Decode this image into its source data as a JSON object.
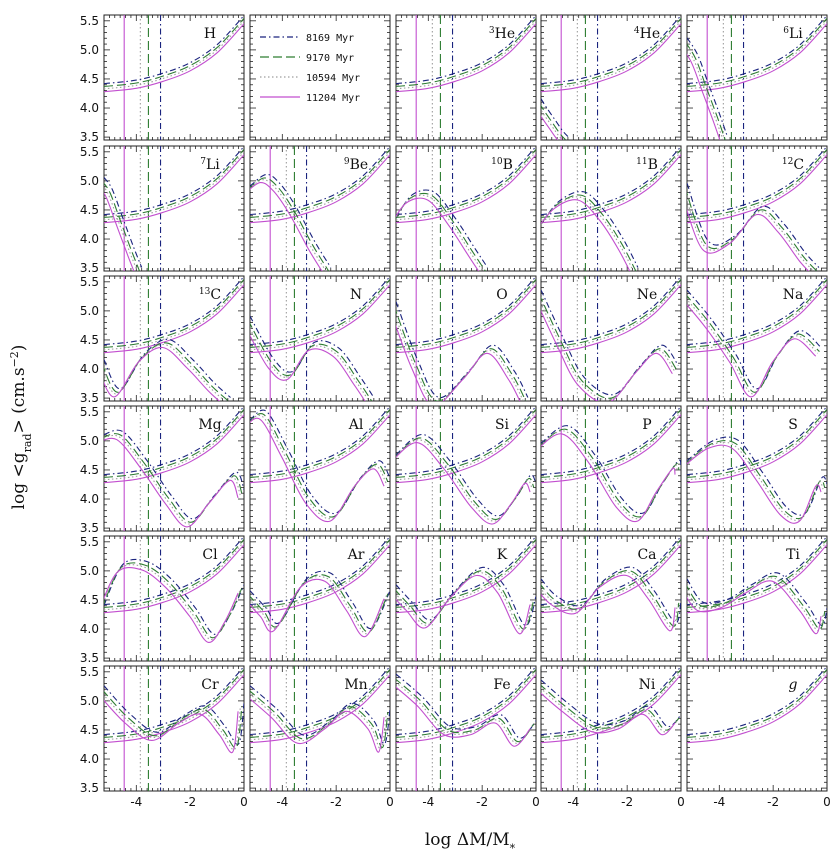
{
  "labels": {
    "ylabel": "log <g_rad> (cm.s^-2)",
    "xlabel": "log ΔM/M*"
  },
  "chart_data": {
    "type": "line",
    "layout": "grid of small-multiple panels, 6 rows x 5 columns; legend in row 1 column 2",
    "xlim": [
      -5.2,
      0
    ],
    "ylim": [
      3.45,
      5.6
    ],
    "xticks": [
      -4,
      -2,
      0
    ],
    "yticks": [
      3.5,
      4.0,
      4.5,
      5.0,
      5.5
    ],
    "ytick_labels": [
      "3.5",
      "4.0",
      "4.5",
      "5.0",
      "5.5"
    ],
    "xtick_labels": [
      "-4",
      "-2",
      "0"
    ],
    "grid": false,
    "series": [
      {
        "name": "8169 Myr",
        "color": "#1a237e",
        "dash": "dash-dot"
      },
      {
        "name": "9170 Myr",
        "color": "#2e7d32",
        "dash": "long dash"
      },
      {
        "name": "10594 Myr",
        "color": "#9e9e9e",
        "dash": "dotted"
      },
      {
        "name": "11204 Myr",
        "color": "#c24fcf",
        "dash": "solid"
      }
    ],
    "vertical_markers": [
      {
        "series": "8169 Myr",
        "x": -3.1
      },
      {
        "series": "9170 Myr",
        "x": -3.55
      },
      {
        "series": "10594 Myr",
        "x": -3.85
      },
      {
        "series": "11204 Myr",
        "x": -4.45
      }
    ],
    "gravity_curve": {
      "x": [
        -5.2,
        -4,
        -3,
        -2,
        -1,
        0
      ],
      "y": [
        4.28,
        4.34,
        4.46,
        4.64,
        4.95,
        5.45
      ]
    },
    "legend_panel": {
      "row": 0,
      "col": 1
    },
    "panels": [
      {
        "label": "H",
        "iso": "",
        "row": 0,
        "col": 0,
        "x": [
          -5.2,
          -4,
          -3,
          -2,
          -1,
          0
        ],
        "y": [
          4.28,
          4.34,
          4.46,
          4.64,
          4.95,
          5.45
        ]
      },
      {
        "label": "He",
        "iso": "3",
        "row": 0,
        "col": 2,
        "x": [
          -5.2,
          -4,
          -3,
          -2,
          -1,
          0
        ],
        "y": [
          4.28,
          4.34,
          4.46,
          4.64,
          4.95,
          5.45
        ]
      },
      {
        "label": "He",
        "iso": "4",
        "row": 0,
        "col": 3,
        "x": [
          -5.2,
          -5,
          -4.7,
          -4.4,
          -4.2
        ],
        "y": [
          4.1,
          3.95,
          3.75,
          3.55,
          3.45
        ]
      },
      {
        "label": "Li",
        "iso": "6",
        "row": 0,
        "col": 4,
        "x": [
          -5.2,
          -4.8,
          -4.4,
          -4,
          -3.7
        ],
        "y": [
          5.15,
          4.85,
          4.35,
          3.85,
          3.45
        ]
      },
      {
        "label": "Li",
        "iso": "7",
        "row": 1,
        "col": 0,
        "x": [
          -5.2,
          -4.9,
          -4.5,
          -4.1,
          -3.8
        ],
        "y": [
          5.0,
          4.8,
          4.3,
          3.8,
          3.45
        ]
      },
      {
        "label": "Be",
        "iso": "9",
        "row": 1,
        "col": 1,
        "x": [
          -5.2,
          -4.6,
          -4.1,
          -3.5,
          -2.8,
          -2.2
        ],
        "y": [
          4.85,
          5.05,
          4.9,
          4.5,
          3.9,
          3.45
        ]
      },
      {
        "label": "B",
        "iso": "10",
        "row": 1,
        "col": 2,
        "x": [
          -5.2,
          -4.6,
          -3.8,
          -3,
          -2.3,
          -1.8
        ],
        "y": [
          4.3,
          4.7,
          4.75,
          4.3,
          3.8,
          3.45
        ]
      },
      {
        "label": "B",
        "iso": "11",
        "row": 1,
        "col": 3,
        "x": [
          -5.2,
          -4.5,
          -3.6,
          -2.8,
          -2.1,
          -1.6
        ],
        "y": [
          4.2,
          4.6,
          4.75,
          4.4,
          3.9,
          3.45
        ]
      },
      {
        "label": "C",
        "iso": "12",
        "row": 1,
        "col": 4,
        "x": [
          -5.2,
          -4.4,
          -3.4,
          -2.4,
          -1.6,
          -0.8,
          -0.3
        ],
        "y": [
          4.9,
          3.9,
          4.0,
          4.5,
          4.2,
          3.7,
          3.45
        ]
      },
      {
        "label": "C",
        "iso": "13",
        "row": 2,
        "col": 0,
        "x": [
          -5.2,
          -4.6,
          -3.7,
          -2.8,
          -1.9,
          -1.1,
          -0.5
        ],
        "y": [
          4.1,
          3.6,
          4.2,
          4.45,
          4.1,
          3.7,
          3.45
        ]
      },
      {
        "label": "N",
        "iso": "",
        "row": 2,
        "col": 1,
        "x": [
          -5.2,
          -4.3,
          -3.6,
          -2.8,
          -1.9,
          -1.1,
          -0.6
        ],
        "y": [
          4.85,
          4.1,
          3.9,
          4.4,
          4.3,
          3.8,
          3.45
        ]
      },
      {
        "label": "O",
        "iso": "",
        "row": 2,
        "col": 2,
        "x": [
          -5.2,
          -4.4,
          -3.6,
          -2.5,
          -1.6,
          -0.8,
          -0.3
        ],
        "y": [
          5.1,
          4.1,
          3.45,
          3.9,
          4.35,
          3.9,
          3.45
        ]
      },
      {
        "label": "Ne",
        "iso": "",
        "row": 2,
        "col": 3,
        "x": [
          -5.2,
          -4.4,
          -3.6,
          -2.5,
          -1.5,
          -0.7,
          -0.1
        ],
        "y": [
          5.3,
          4.5,
          3.8,
          3.5,
          4.0,
          4.35,
          4.0
        ]
      },
      {
        "label": "Na",
        "iso": "",
        "row": 2,
        "col": 4,
        "x": [
          -5.2,
          -4.3,
          -3.4,
          -2.6,
          -1.8,
          -1.0,
          -0.2
        ],
        "y": [
          5.3,
          4.8,
          4.2,
          3.6,
          4.2,
          4.6,
          4.3
        ]
      },
      {
        "label": "Mg",
        "iso": "",
        "row": 3,
        "col": 0,
        "x": [
          -5.2,
          -4.5,
          -3.6,
          -2.7,
          -1.9,
          -1.1,
          -0.3,
          0
        ],
        "y": [
          5.05,
          5.1,
          4.6,
          4.0,
          3.6,
          4.0,
          4.4,
          4.1
        ]
      },
      {
        "label": "Al",
        "iso": "",
        "row": 3,
        "col": 1,
        "x": [
          -5.2,
          -4.6,
          -3.8,
          -2.9,
          -2.0,
          -1.1,
          -0.4,
          0
        ],
        "y": [
          5.3,
          5.45,
          4.8,
          4.0,
          3.7,
          4.3,
          4.6,
          4.3
        ]
      },
      {
        "label": "Si",
        "iso": "",
        "row": 3,
        "col": 2,
        "x": [
          -5.2,
          -4.2,
          -3.2,
          -2.2,
          -1.4,
          -0.7,
          -0.2,
          0
        ],
        "y": [
          4.7,
          5.05,
          4.6,
          3.95,
          3.65,
          4.0,
          4.35,
          4.2
        ]
      },
      {
        "label": "P",
        "iso": "",
        "row": 3,
        "col": 3,
        "x": [
          -5.2,
          -4.2,
          -3.2,
          -2.2,
          -1.4,
          -0.7,
          -0.1,
          0
        ],
        "y": [
          4.9,
          5.2,
          4.7,
          3.95,
          3.7,
          4.2,
          4.6,
          4.5
        ]
      },
      {
        "label": "S",
        "iso": "",
        "row": 3,
        "col": 4,
        "x": [
          -5.2,
          -4.2,
          -3.3,
          -2.4,
          -1.5,
          -0.8,
          -0.2,
          0
        ],
        "y": [
          4.6,
          4.95,
          4.95,
          4.4,
          3.8,
          3.7,
          4.3,
          4.2
        ]
      },
      {
        "label": "Cl",
        "iso": "",
        "row": 4,
        "col": 0,
        "x": [
          -5.2,
          -4.5,
          -3.6,
          -2.7,
          -1.8,
          -1.1,
          -0.5,
          0
        ],
        "y": [
          4.35,
          5.05,
          5.1,
          4.8,
          4.3,
          3.85,
          4.2,
          4.7
        ]
      },
      {
        "label": "Ar",
        "iso": "",
        "row": 4,
        "col": 1,
        "x": [
          -5.2,
          -4.6,
          -4.1,
          -3.1,
          -2.2,
          -1.4,
          -0.7,
          0
        ],
        "y": [
          4.6,
          4.3,
          4.05,
          4.8,
          4.9,
          4.4,
          3.95,
          4.6
        ]
      },
      {
        "label": "K",
        "iso": "",
        "row": 4,
        "col": 2,
        "x": [
          -5.2,
          -4.6,
          -3.9,
          -3.0,
          -2.0,
          -1.2,
          -0.4,
          0
        ],
        "y": [
          4.7,
          4.4,
          4.1,
          4.6,
          5.0,
          4.7,
          4.0,
          4.5
        ]
      },
      {
        "label": "Ca",
        "iso": "",
        "row": 4,
        "col": 3,
        "x": [
          -5.2,
          -4.6,
          -3.7,
          -2.8,
          -1.8,
          -1.0,
          -0.2,
          0
        ],
        "y": [
          4.8,
          4.5,
          4.35,
          4.8,
          5.0,
          4.6,
          4.05,
          4.45
        ]
      },
      {
        "label": "Ti",
        "iso": "",
        "row": 4,
        "col": 4,
        "x": [
          -5.2,
          -4.6,
          -3.7,
          -2.8,
          -1.8,
          -0.8,
          -0.2,
          0
        ],
        "y": [
          4.8,
          4.4,
          4.45,
          4.7,
          4.9,
          4.4,
          4.0,
          4.3
        ]
      },
      {
        "label": "Cr",
        "iso": "",
        "row": 5,
        "col": 0,
        "x": [
          -5.2,
          -4.2,
          -3.2,
          -2.2,
          -1.4,
          -0.7,
          -0.2,
          0
        ],
        "y": [
          5.2,
          4.7,
          4.4,
          4.7,
          4.85,
          4.5,
          4.2,
          4.9
        ]
      },
      {
        "label": "Mn",
        "iso": "",
        "row": 5,
        "col": 1,
        "x": [
          -5.2,
          -4.2,
          -3.2,
          -2.2,
          -1.4,
          -0.6,
          -0.2,
          0
        ],
        "y": [
          5.2,
          4.8,
          4.35,
          4.6,
          4.9,
          4.6,
          4.2,
          4.8
        ]
      },
      {
        "label": "Fe",
        "iso": "",
        "row": 5,
        "col": 2,
        "x": [
          -5.2,
          -4.2,
          -3.2,
          -2.2,
          -1.3,
          -0.6,
          0
        ],
        "y": [
          5.4,
          5.0,
          4.5,
          4.5,
          4.7,
          4.3,
          4.6
        ]
      },
      {
        "label": "Ni",
        "iso": "",
        "row": 5,
        "col": 3,
        "x": [
          -5.2,
          -4.2,
          -3.1,
          -2.1,
          -1.2,
          -0.5,
          0
        ],
        "y": [
          5.3,
          4.9,
          4.55,
          4.6,
          4.85,
          4.5,
          4.7
        ]
      },
      {
        "label": "g",
        "iso": "",
        "row": 5,
        "col": 4,
        "x": [
          -5.2,
          -4,
          -3,
          -2,
          -1,
          0
        ],
        "y": [
          4.28,
          4.34,
          4.46,
          4.64,
          4.95,
          5.45
        ]
      }
    ]
  }
}
